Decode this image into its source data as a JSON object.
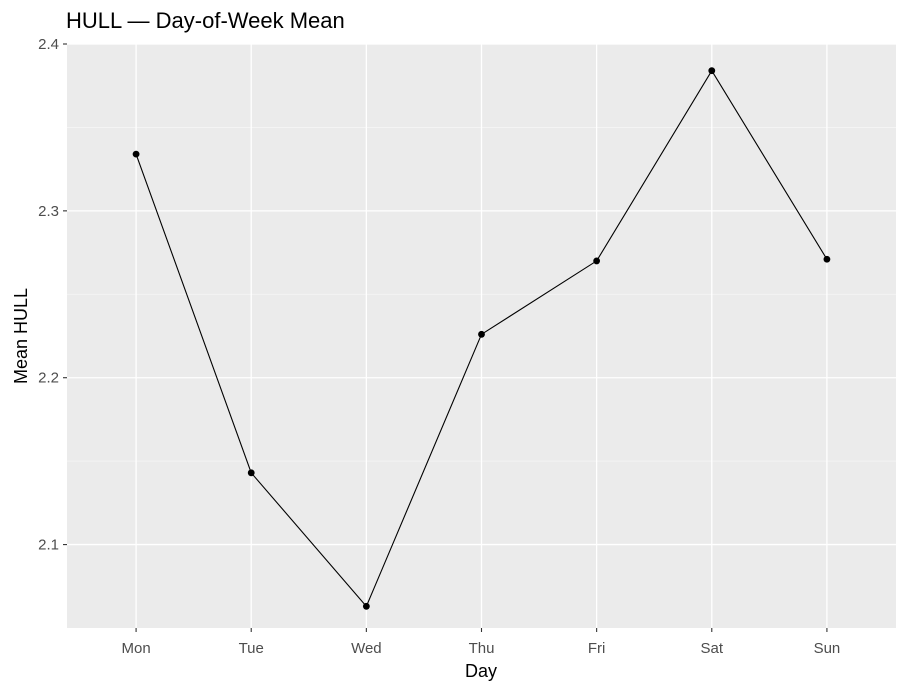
{
  "chart_data": {
    "type": "line",
    "title": "HULL — Day-of-Week Mean",
    "xlabel": "Day",
    "ylabel": "Mean HULL",
    "categories": [
      "Mon",
      "Tue",
      "Wed",
      "Thu",
      "Fri",
      "Sat",
      "Sun"
    ],
    "series": [
      {
        "values": [
          2.334,
          2.143,
          2.063,
          2.226,
          2.27,
          2.384,
          2.271
        ]
      }
    ],
    "y_ticks": [
      "2.1",
      "2.2",
      "2.3",
      "2.4"
    ],
    "ylim": [
      2.05,
      2.4
    ],
    "grid": true,
    "colors": {
      "panel_background": "#ebebeb",
      "grid_major": "#ffffff",
      "grid_minor": "#f5f5f5",
      "line": "#000000",
      "point": "#000000",
      "tick": "#333333"
    }
  }
}
